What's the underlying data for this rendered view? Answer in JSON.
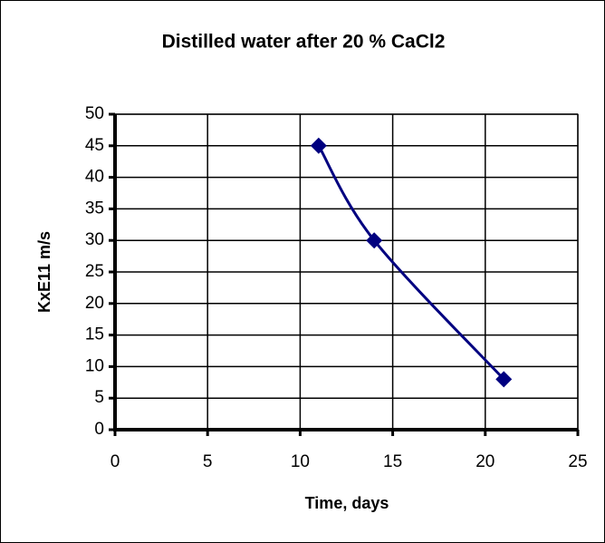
{
  "chart_data": {
    "type": "line",
    "title": "Distilled water after 20 % CaCl2",
    "x_label": "Time, days",
    "y_label": "KxE11 m/s",
    "series": [
      {
        "name": "KxE11",
        "color": "#000080",
        "x": [
          11,
          14,
          21
        ],
        "values": [
          45,
          30,
          8
        ]
      }
    ],
    "xlim": [
      0,
      25
    ],
    "xticks": [
      0,
      5,
      10,
      15,
      20,
      25
    ],
    "ylim": [
      0,
      50
    ],
    "yticks": [
      0,
      5,
      10,
      15,
      20,
      25,
      30,
      35,
      40,
      45,
      50
    ],
    "grid": true,
    "smooth": true
  }
}
